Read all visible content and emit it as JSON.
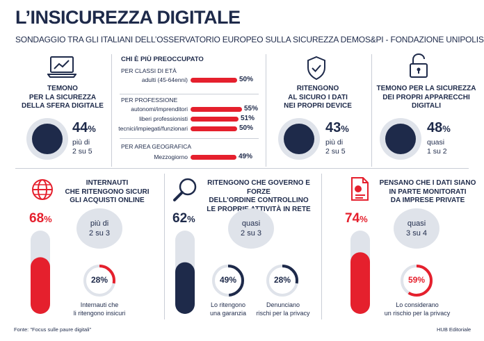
{
  "title": "L’INSICUREZZA DIGITALE",
  "subtitle": "SONDAGGIO TRA GLI ITALIANI DELL’OSSERVATORIO EUROPEO SULLA SICUREZZA DEMOS&PI - FONDAZIONE UNIPOLIS",
  "colors": {
    "navy": "#1e2a4a",
    "red": "#e5202d",
    "light": "#dfe3ea",
    "grey": "#c9cdd6"
  },
  "icons": [
    "laptop-chart-icon",
    "shield-check-icon",
    "unlocked-padlock-icon",
    "globe-icon",
    "magnifier-icon",
    "document-chart-icon"
  ],
  "top": {
    "block1": {
      "label": "TEMONO\nPER LA SICUREZZA\nDELLA SFERA DIGITALE",
      "value": 44,
      "value_text": "44",
      "unit": "%",
      "note": "più di\n2 su 5"
    },
    "block3": {
      "label": "RITENGONO\nAL SICURO I DATI\nNEI PROPRI DEVICE",
      "value": 43,
      "value_text": "43",
      "unit": "%",
      "note": "più di\n2 su 5"
    },
    "block4": {
      "label": "TEMONO PER LA SICUREZZA\nDEI PROPRI APPARECCHI\nDIGITALI",
      "value": 48,
      "value_text": "48",
      "unit": "%",
      "note": "quasi\n1 su 2"
    }
  },
  "middle": {
    "heading": "CHI È PIÙ PREOCCUPATO",
    "groups": [
      {
        "title": "PER CLASSI DI ETÀ",
        "rows": [
          {
            "label": "adulti (45-64enni)",
            "value": 50,
            "value_text": "50%"
          }
        ]
      },
      {
        "title": "PER PROFESSIONE",
        "rows": [
          {
            "label": "autonomi/imprenditori",
            "value": 55,
            "value_text": "55%"
          },
          {
            "label": "liberi professionisti",
            "value": 51,
            "value_text": "51%"
          },
          {
            "label": "tecnici/impiegati/funzionari",
            "value": 50,
            "value_text": "50%"
          }
        ]
      },
      {
        "title": "PER AREA GEOGRAFICA",
        "rows": [
          {
            "label": "Mezzogiorno",
            "value": 49,
            "value_text": "49%"
          }
        ]
      }
    ]
  },
  "bottom": {
    "block1": {
      "label": "INTERNAUTI\nCHE RITENGONO SICURI\nGLI ACQUISTI ONLINE",
      "value": 68,
      "value_text": "68",
      "unit": "%",
      "bubble": "più di\n2 su 3",
      "ring": {
        "value": 28,
        "text": "28%",
        "caption": "Internauti che\nli ritengono insicuri"
      }
    },
    "block2": {
      "label": "RITENGONO CHE GOVERNO E FORZE\nDELL’ORDINE CONTROLLINO\nLE PROPRIE ATTIVITÀ IN RETE",
      "value": 62,
      "value_text": "62",
      "unit": "%",
      "bubble": "quasi\n2 su 3",
      "rings": [
        {
          "value": 49,
          "text": "49%",
          "caption": "Lo ritengono\nuna garanzia"
        },
        {
          "value": 28,
          "text": "28%",
          "caption": "Denunciano\nrischi per la privacy"
        }
      ]
    },
    "block3": {
      "label": "PENSANO CHE I DATI SIANO\nIN PARTE  MONITORATI\nDA IMPRESE  PRIVATE",
      "value": 74,
      "value_text": "74",
      "unit": "%",
      "bubble": "quasi\n3 su 4",
      "ring": {
        "value": 59,
        "text": "59%",
        "caption": "Lo considerano\nun rischio per la privacy"
      }
    }
  },
  "source": "Fonte: \"Focus sulle paure digitali\"",
  "publisher": "HUB Editoriale"
}
